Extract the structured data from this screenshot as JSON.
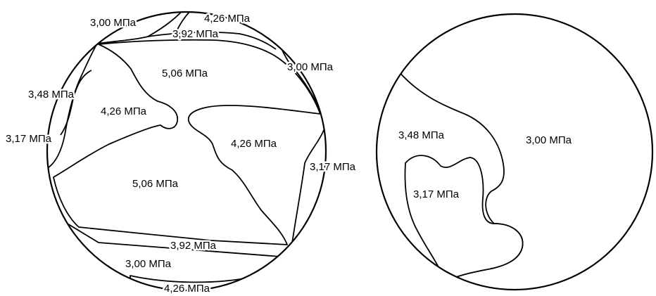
{
  "left_circle": {
    "labels": [
      "3,00 МПа",
      "4,26 МПа",
      "3,92 МПа",
      "5,06 МПа",
      "3,00 МПа",
      "3,48 МПа",
      "4,26 МПа",
      "3,17 МПа",
      "4,26 МПа",
      "3,17 МПа",
      "5,06 МПа",
      "3,92 МПа",
      "3,00 МПа",
      "4,26 МПа"
    ]
  },
  "right_circle": {
    "labels": [
      "3,48 МПа",
      "3,00 МПа",
      "3,17 МПа"
    ]
  },
  "colors": {
    "line": "#000000",
    "background": "#ffffff"
  }
}
